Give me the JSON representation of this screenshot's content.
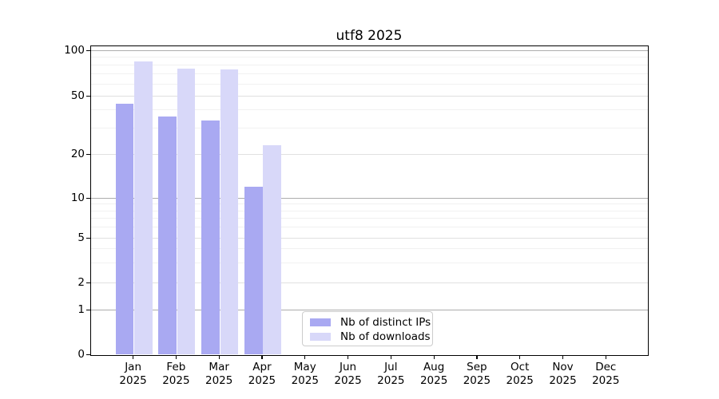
{
  "chart_data": {
    "type": "bar",
    "title": "utf8 2025",
    "categories": [
      "Jan 2025",
      "Feb 2025",
      "Mar 2025",
      "Apr 2025",
      "May 2025",
      "Jun 2025",
      "Jul 2025",
      "Aug 2025",
      "Sep 2025",
      "Oct 2025",
      "Nov 2025",
      "Dec 2025"
    ],
    "series": [
      {
        "name": "Nb of distinct IPs",
        "color": "#a9a9f2",
        "values": [
          44,
          36,
          34,
          12,
          null,
          null,
          null,
          null,
          null,
          null,
          null,
          null
        ]
      },
      {
        "name": "Nb of downloads",
        "color": "#d8d8f9",
        "values": [
          84,
          76,
          75,
          23,
          null,
          null,
          null,
          null,
          null,
          null,
          null,
          null
        ]
      }
    ],
    "yscale": "symlog",
    "yticks": [
      0,
      1,
      2,
      5,
      10,
      20,
      50,
      100
    ],
    "ylim": [
      0,
      106
    ],
    "xlabel": "",
    "ylabel": "",
    "grid": true,
    "legend_position": "lower center inside"
  },
  "colors": {
    "grid_major": "#adadad",
    "grid_mid": "#e0e0e0",
    "grid_minor": "#f1f1f1",
    "axis": "#000000",
    "legend_border": "#cccccc"
  }
}
